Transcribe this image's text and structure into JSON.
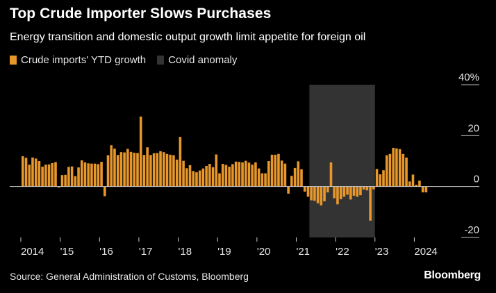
{
  "header": {
    "title": "Top Crude Importer Slows Purchases",
    "subtitle": "Energy transition and domestic output growth limit appetite for foreign oil"
  },
  "legend": {
    "items": [
      {
        "label": "Crude imports' YTD growth",
        "color": "#e8972a"
      },
      {
        "label": "Covid anomaly",
        "color": "#333333"
      }
    ]
  },
  "footer": {
    "source": "Source: General Administration of Customs, Bloomberg",
    "brand": "Bloomberg"
  },
  "chart_data": {
    "type": "bar",
    "x_unit": "month",
    "x_start": "2014-01",
    "x_range": [
      "2014-01",
      "2024-12"
    ],
    "ylim": [
      -20,
      40
    ],
    "yticks": [
      {
        "value": 40,
        "label": "40%"
      },
      {
        "value": 20,
        "label": "20"
      },
      {
        "value": 0,
        "label": "0"
      },
      {
        "value": -20,
        "label": "-20"
      }
    ],
    "xticks": [
      {
        "date": "2014-01",
        "label": "2014"
      },
      {
        "date": "2015-01",
        "label": "'15"
      },
      {
        "date": "2016-01",
        "label": "'16"
      },
      {
        "date": "2017-01",
        "label": "'17"
      },
      {
        "date": "2018-01",
        "label": "'18"
      },
      {
        "date": "2019-01",
        "label": "'19"
      },
      {
        "date": "2020-01",
        "label": "'20"
      },
      {
        "date": "2021-01",
        "label": "'21"
      },
      {
        "date": "2022-01",
        "label": "'22"
      },
      {
        "date": "2023-01",
        "label": "'23"
      },
      {
        "date": "2024-01",
        "label": "2024"
      }
    ],
    "shaded_region": {
      "start": "2021-05",
      "end": "2022-12",
      "label": "Covid anomaly",
      "color": "#333333"
    },
    "bar_color": "#e8972a",
    "series": [
      {
        "name": "Crude imports' YTD growth",
        "values": [
          11.9,
          11.3,
          8.6,
          11.4,
          11.0,
          10.0,
          7.8,
          8.6,
          8.7,
          9.2,
          9.6,
          -0.4,
          4.5,
          4.6,
          7.7,
          7.9,
          4.1,
          7.5,
          10.3,
          9.5,
          9.1,
          9.0,
          9.0,
          8.8,
          9.7,
          -3.8,
          12.3,
          16.2,
          14.9,
          12.4,
          13.5,
          13.4,
          14.8,
          13.6,
          13.3,
          13.2,
          27.5,
          12.4,
          15.4,
          12.4,
          13.1,
          13.2,
          13.9,
          13.5,
          12.8,
          12.5,
          12.3,
          10.6,
          19.5,
          10.1,
          7.2,
          8.4,
          6.1,
          5.6,
          6.3,
          7.1,
          8.1,
          8.9,
          7.6,
          12.6,
          5.2,
          8.9,
          8.5,
          7.8,
          8.8,
          9.8,
          9.7,
          9.5,
          10.1,
          9.4,
          8.6,
          9.5,
          7.1,
          5.2,
          5.2,
          10.0,
          12.5,
          12.5,
          12.8,
          10.2,
          9.0,
          -2.8,
          4.2,
          7.3,
          9.9,
          6.8,
          -2.0,
          -4.0,
          -5.4,
          -5.6,
          -6.6,
          -7.4,
          -5.8,
          -2.3,
          9.5,
          -4.6,
          -7.0,
          -5.0,
          -4.0,
          -3.2,
          -5.1,
          -3.6,
          -4.0,
          -3.4,
          -1.2,
          -1.5,
          -13.4,
          -1.1,
          6.9,
          4.8,
          6.4,
          12.3,
          12.8,
          15.2,
          15.0,
          14.7,
          12.8,
          11.4,
          2.0,
          4.7,
          0.7,
          2.3,
          -2.3,
          -2.3
        ]
      }
    ],
    "grid": false,
    "legend_position": "top-left"
  }
}
